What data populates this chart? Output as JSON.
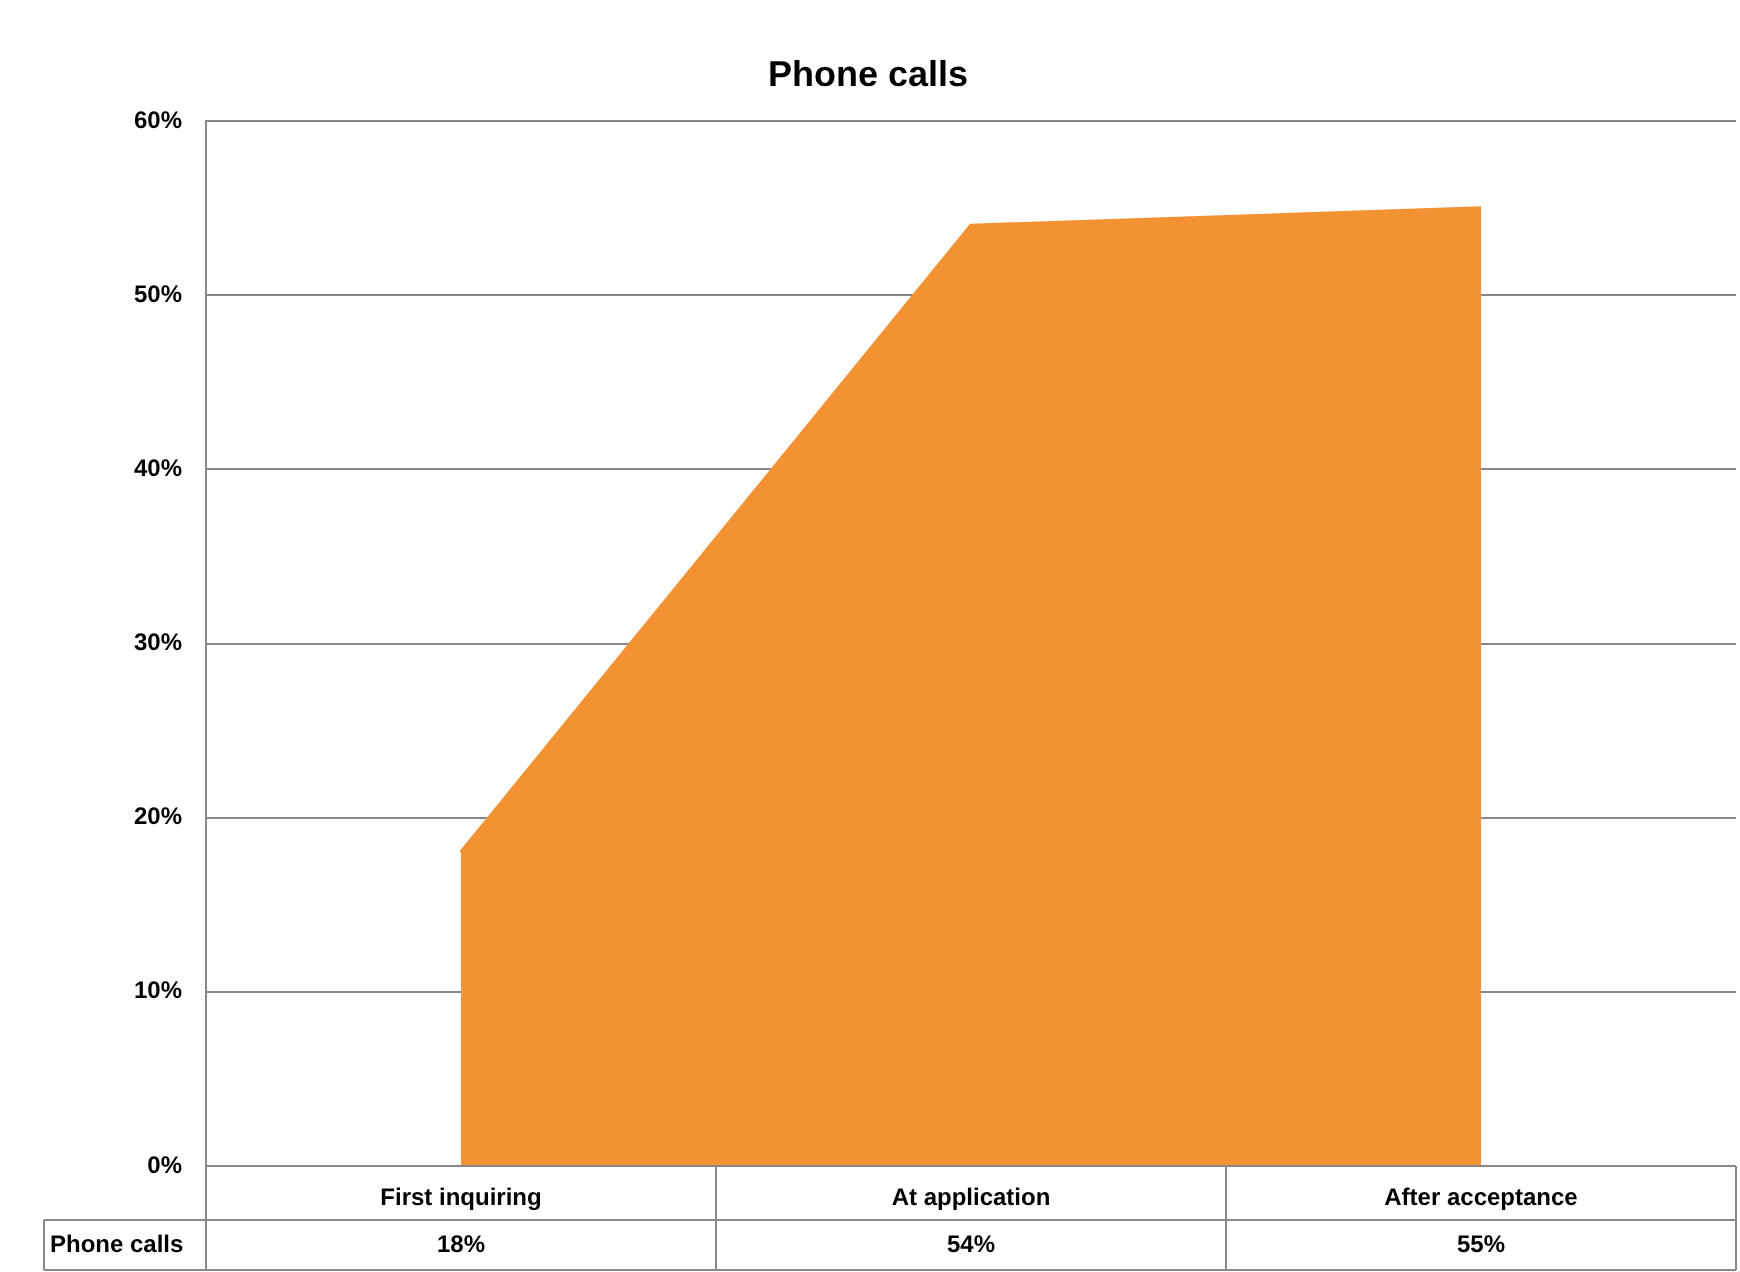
{
  "chart_data": {
    "type": "area",
    "title": "Phone calls",
    "categories": [
      "First inquiring",
      "At application",
      "After acceptance"
    ],
    "series": [
      {
        "name": "Phone calls",
        "color": "#f39233",
        "values": [
          18,
          54,
          55
        ],
        "value_labels": [
          "18%",
          "54%",
          "55%"
        ]
      }
    ],
    "ylim": [
      0,
      60
    ],
    "yticks": [
      {
        "value": 0,
        "label": "0%"
      },
      {
        "value": 10,
        "label": "10%"
      },
      {
        "value": 20,
        "label": "20%"
      },
      {
        "value": 30,
        "label": "30%"
      },
      {
        "value": 40,
        "label": "40%"
      },
      {
        "value": 50,
        "label": "50%"
      },
      {
        "value": 60,
        "label": "60%"
      }
    ],
    "grid": "y",
    "legend": false
  }
}
